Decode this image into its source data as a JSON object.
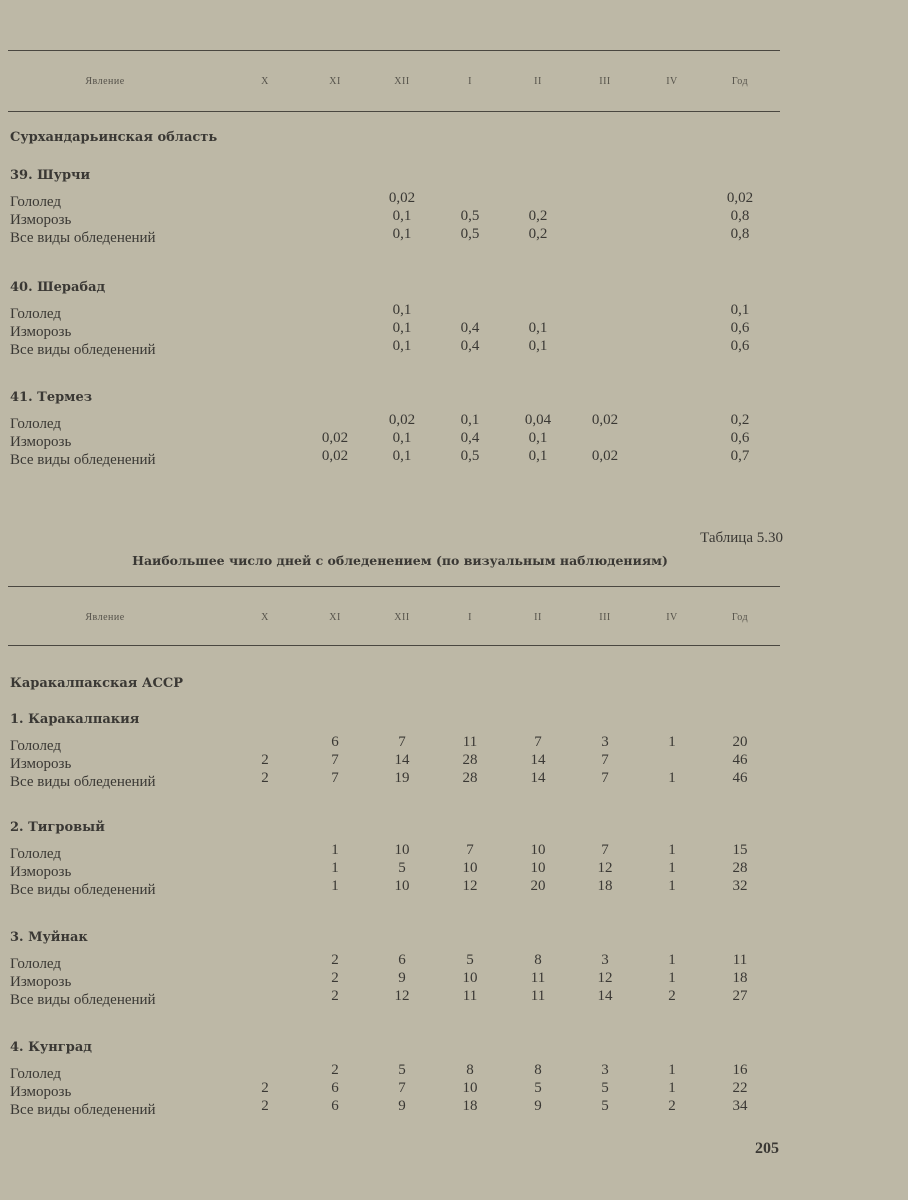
{
  "columns": [
    "Явление",
    "X",
    "XI",
    "XII",
    "I",
    "II",
    "III",
    "IV",
    "Год"
  ],
  "table1": {
    "region": "Сурхандарьинская область",
    "stations": [
      {
        "name": "39. Шурчи",
        "rows": [
          {
            "label": "Гололед",
            "values": [
              "",
              "",
              "0,02",
              "",
              "",
              "",
              "",
              "0,02"
            ]
          },
          {
            "label": "Изморозь",
            "values": [
              "",
              "",
              "0,1",
              "0,5",
              "0,2",
              "",
              "",
              "0,8"
            ]
          },
          {
            "label": "Все виды обледенений",
            "values": [
              "",
              "",
              "0,1",
              "0,5",
              "0,2",
              "",
              "",
              "0,8"
            ]
          }
        ]
      },
      {
        "name": "40. Шерабад",
        "rows": [
          {
            "label": "Гололед",
            "values": [
              "",
              "",
              "0,1",
              "",
              "",
              "",
              "",
              "0,1"
            ]
          },
          {
            "label": "Изморозь",
            "values": [
              "",
              "",
              "0,1",
              "0,4",
              "0,1",
              "",
              "",
              "0,6"
            ]
          },
          {
            "label": "Все виды обледенений",
            "values": [
              "",
              "",
              "0,1",
              "0,4",
              "0,1",
              "",
              "",
              "0,6"
            ]
          }
        ]
      },
      {
        "name": "41. Термез",
        "rows": [
          {
            "label": "Гололед",
            "values": [
              "",
              "",
              "0,02",
              "0,1",
              "0,04",
              "0,02",
              "",
              "0,2"
            ]
          },
          {
            "label": "Изморозь",
            "values": [
              "",
              "0,02",
              "0,1",
              "0,4",
              "0,1",
              "",
              "",
              "0,6"
            ]
          },
          {
            "label": "Все виды обледенений",
            "values": [
              "",
              "0,02",
              "0,1",
              "0,5",
              "0,1",
              "0,02",
              "",
              "0,7"
            ]
          }
        ]
      }
    ]
  },
  "table2": {
    "caption": "Таблица 5.30",
    "title": "Наибольшее число дней с обледенением (по визуальным наблюдениям)",
    "region": "Каракалпакская АССР",
    "stations": [
      {
        "name": "1. Каракалпакия",
        "rows": [
          {
            "label": "Гололед",
            "values": [
              "",
              "6",
              "7",
              "11",
              "7",
              "3",
              "1",
              "20"
            ]
          },
          {
            "label": "Изморозь",
            "values": [
              "2",
              "7",
              "14",
              "28",
              "14",
              "7",
              "",
              "46"
            ]
          },
          {
            "label": "Все виды обледенений",
            "values": [
              "2",
              "7",
              "19",
              "28",
              "14",
              "7",
              "1",
              "46"
            ]
          }
        ]
      },
      {
        "name": "2. Тигровый",
        "rows": [
          {
            "label": "Гололед",
            "values": [
              "",
              "1",
              "10",
              "7",
              "10",
              "7",
              "1",
              "15"
            ]
          },
          {
            "label": "Изморозь",
            "values": [
              "",
              "1",
              "5",
              "10",
              "10",
              "12",
              "1",
              "28"
            ]
          },
          {
            "label": "Все виды обледенений",
            "values": [
              "",
              "1",
              "10",
              "12",
              "20",
              "18",
              "1",
              "32"
            ]
          }
        ]
      },
      {
        "name": "3. Муйнак",
        "rows": [
          {
            "label": "Гололед",
            "values": [
              "",
              "2",
              "6",
              "5",
              "8",
              "3",
              "1",
              "11"
            ]
          },
          {
            "label": "Изморозь",
            "values": [
              "",
              "2",
              "9",
              "10",
              "11",
              "12",
              "1",
              "18"
            ]
          },
          {
            "label": "Все виды обледенений",
            "values": [
              "",
              "2",
              "12",
              "11",
              "11",
              "14",
              "2",
              "27"
            ]
          }
        ]
      },
      {
        "name": "4. Кунград",
        "rows": [
          {
            "label": "Гололед",
            "values": [
              "",
              "2",
              "5",
              "8",
              "8",
              "3",
              "1",
              "16"
            ]
          },
          {
            "label": "Изморозь",
            "values": [
              "2",
              "6",
              "7",
              "10",
              "5",
              "5",
              "1",
              "22"
            ]
          },
          {
            "label": "Все виды обледенений",
            "values": [
              "2",
              "6",
              "9",
              "18",
              "9",
              "5",
              "2",
              "34"
            ]
          }
        ]
      }
    ]
  },
  "page_number": "205"
}
